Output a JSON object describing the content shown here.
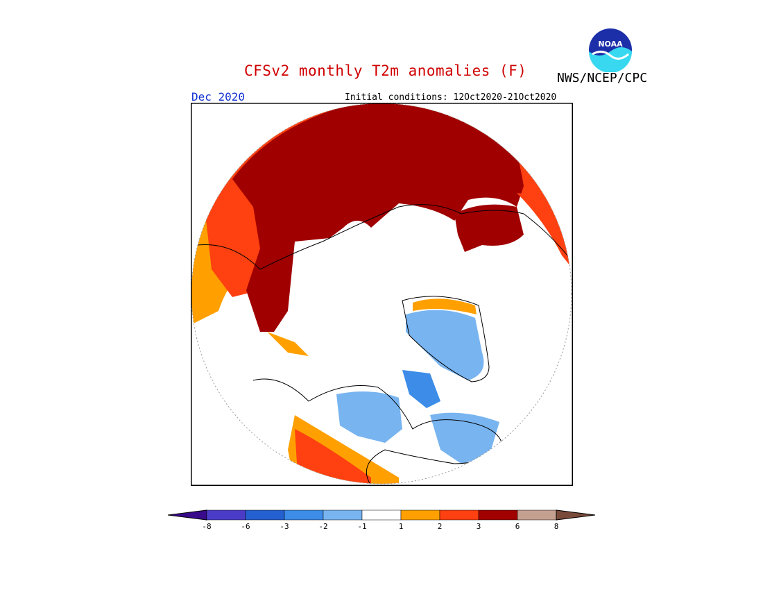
{
  "header": {
    "title": "CFSv2 monthly T2m anomalies (F)",
    "agency": "NWS/NCEP/CPC",
    "logo_text": "NOAA",
    "month": "Dec 2020",
    "initial_conditions": "Initial conditions: 12Oct2020-21Oct2020"
  },
  "colors": {
    "title": "#d00000",
    "month": "#1030d0",
    "scale": [
      "#3a0a8c",
      "#4b3cc8",
      "#2460d0",
      "#3c8ce8",
      "#78b4f0",
      "#ffffff",
      "#ffa000",
      "#ff4010",
      "#a00000",
      "#c4a090",
      "#7a4a3a"
    ]
  },
  "map": {
    "projection": "north-polar-stereographic",
    "regions": [
      {
        "name": "Eurasia / Arctic coast",
        "category": "3 to 6"
      },
      {
        "name": "Scandinavia / Northern Europe",
        "category": "3 to 6"
      },
      {
        "name": "Northeast Pacific / West Coast",
        "category": "2 to 3"
      },
      {
        "name": "Canada",
        "category": "-3 to -2"
      },
      {
        "name": "Greenland",
        "category": "-2 to -1"
      }
    ]
  },
  "colorbar": {
    "ticks": [
      "-8",
      "-6",
      "-3",
      "-2",
      "-1",
      "1",
      "2",
      "3",
      "6",
      "8"
    ]
  }
}
